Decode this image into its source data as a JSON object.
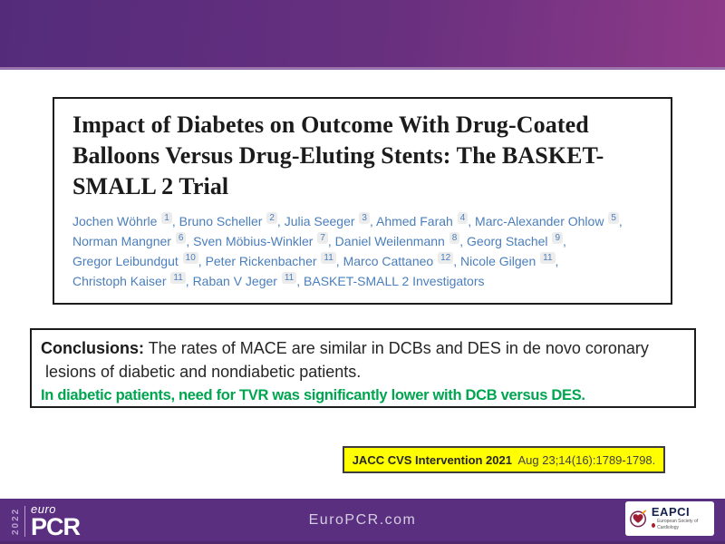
{
  "paper": {
    "title": "Impact of Diabetes on Outcome With Drug-Coated Balloons Versus Drug-Eluting Stents: The BASKET-SMALL 2 Trial",
    "author_lines": [
      [
        {
          "name": "Jochen Wöhrle",
          "sup": "1"
        },
        {
          "name": "Bruno Scheller",
          "sup": "2"
        },
        {
          "name": "Julia Seeger",
          "sup": "3"
        },
        {
          "name": "Ahmed Farah",
          "sup": "4"
        },
        {
          "name": "Marc-Alexander Ohlow",
          "sup": "5"
        }
      ],
      [
        {
          "name": "Norman Mangner",
          "sup": "6"
        },
        {
          "name": "Sven Möbius-Winkler",
          "sup": "7"
        },
        {
          "name": "Daniel Weilenmann",
          "sup": "8"
        },
        {
          "name": "Georg Stachel",
          "sup": "9"
        }
      ],
      [
        {
          "name": "Gregor Leibundgut",
          "sup": "10"
        },
        {
          "name": "Peter Rickenbacher",
          "sup": "11"
        },
        {
          "name": "Marco Cattaneo",
          "sup": "12"
        },
        {
          "name": "Nicole Gilgen",
          "sup": "11"
        }
      ],
      [
        {
          "name": "Christoph Kaiser",
          "sup": "11"
        },
        {
          "name": "Raban V Jeger",
          "sup": "11"
        },
        {
          "name": "BASKET-SMALL 2 Investigators",
          "sup": null
        }
      ]
    ]
  },
  "conclusions": {
    "label": "Conclusions:",
    "line1": " The rates of MACE are similar in DCBs and DES in de novo coronary",
    "line2": " lesions of diabetic and nondiabetic patients.",
    "highlight": "In diabetic patients, need for TVR was significantly lower with DCB versus DES."
  },
  "citation": {
    "journal_bold": "JACC CVS Intervention 2021",
    "reference": "  Aug 23;14(16):1789-1798."
  },
  "footer": {
    "year": "2022",
    "logo_sub": "euro",
    "logo_main": "PCR",
    "website": "EuroPCR.com",
    "eapci_name": "EAPCI",
    "eapci_subtitle": "European Society of Cardiology"
  },
  "colors": {
    "banner_gradient_left": "#542b7b",
    "banner_gradient_right": "#8e3a88",
    "banner_bottom_edge": "#9b74ad",
    "footer_purple": "#5a2f80",
    "author_blue": "#4a7ebc",
    "conclusion_green": "#00a550",
    "citation_yellow": "#ffff00",
    "eapci_heart_red": "#9e1b32"
  }
}
